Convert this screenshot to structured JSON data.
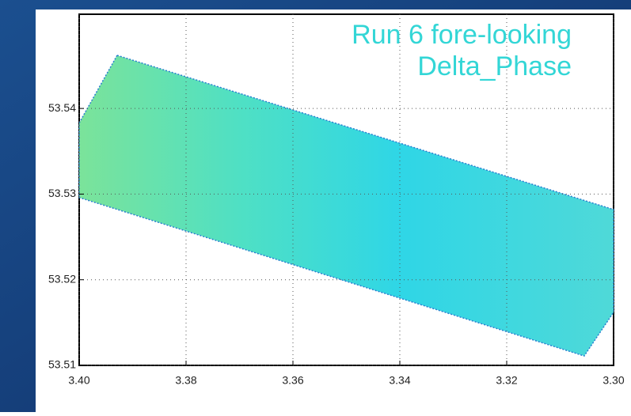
{
  "chart_data": {
    "type": "area",
    "title": [
      "Run 6 fore-looking",
      "Delta_Phase"
    ],
    "title_color": "#33d6d6",
    "swath": {
      "x": [
        3.3929,
        3.4,
        3.4,
        3.3055,
        3.3,
        3.3
      ],
      "y": [
        53.5462,
        53.5383,
        53.5296,
        53.5111,
        53.5162,
        53.5282
      ]
    },
    "color": "#3fe0d0",
    "xlim": [
      3.4,
      3.3
    ],
    "xticks": [
      {
        "value": 3.4,
        "label": "3.40"
      },
      3.38,
      3.36,
      3.34,
      3.32,
      {
        "value": 3.3,
        "label": "3.30"
      }
    ],
    "ylim": [
      53.51,
      53.551
    ],
    "yticks": [
      53.51,
      53.52,
      53.53,
      53.54
    ],
    "grid": true
  }
}
